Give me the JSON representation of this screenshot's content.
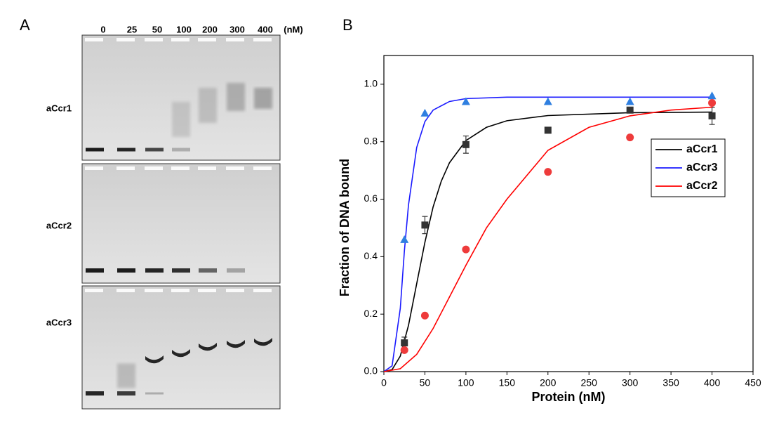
{
  "panel_a": {
    "label": "A",
    "concentrations": [
      "0",
      "25",
      "50",
      "100",
      "200",
      "300",
      "400"
    ],
    "unit": "(nM)",
    "rows": [
      "aCcr1",
      "aCcr2",
      "aCcr3"
    ]
  },
  "panel_b": {
    "label": "B"
  },
  "chart_data": {
    "type": "scatter",
    "x_label": "Protein (nM)",
    "y_label": "Fraction of DNA bound",
    "xlim": [
      0,
      450
    ],
    "ylim": [
      0,
      1.1
    ],
    "xticks": [
      0,
      50,
      100,
      150,
      200,
      250,
      300,
      350,
      400,
      450
    ],
    "yticks": [
      {
        "value": 0,
        "label": "0.0"
      },
      0.2,
      0.4,
      0.6,
      0.8,
      {
        "value": 1,
        "label": "1.0"
      }
    ],
    "grid": false,
    "legend": "right",
    "x": [
      25,
      50,
      100,
      200,
      300,
      400
    ],
    "series": [
      {
        "name": "aCcr1",
        "color": "#333333",
        "marker": "square",
        "values": [
          0.1,
          0.51,
          0.79,
          0.84,
          0.91,
          0.89
        ],
        "errors": [
          0.02,
          0.03,
          0.03,
          0.01,
          0.01,
          0.03
        ],
        "fit": {
          "color": "#000000",
          "x": [
            0,
            10,
            20,
            30,
            40,
            50,
            60,
            70,
            80,
            100,
            125,
            150,
            200,
            300,
            400
          ],
          "values": [
            0,
            0.007,
            0.054,
            0.161,
            0.306,
            0.45,
            0.573,
            0.663,
            0.727,
            0.804,
            0.85,
            0.873,
            0.891,
            0.901,
            0.903
          ]
        }
      },
      {
        "name": "aCcr3",
        "color": "#2f7fe0",
        "marker": "triangle",
        "values": [
          0.46,
          0.9,
          0.94,
          0.94,
          0.94,
          0.96
        ],
        "fit": {
          "color": "#1a1aff",
          "x": [
            0,
            10,
            20,
            25,
            30,
            40,
            50,
            60,
            80,
            100,
            150,
            200,
            300,
            400
          ],
          "values": [
            0,
            0.02,
            0.22,
            0.42,
            0.58,
            0.78,
            0.87,
            0.91,
            0.94,
            0.95,
            0.955,
            0.955,
            0.955,
            0.955
          ]
        }
      },
      {
        "name": "aCcr2",
        "color": "#ee3b3b",
        "marker": "circle",
        "values": [
          0.075,
          0.195,
          0.425,
          0.695,
          0.815,
          0.935
        ],
        "fit": {
          "color": "#ff0000",
          "x": [
            0,
            20,
            40,
            60,
            80,
            100,
            125,
            150,
            200,
            250,
            300,
            350,
            400
          ],
          "values": [
            0,
            0.01,
            0.06,
            0.15,
            0.26,
            0.37,
            0.5,
            0.6,
            0.77,
            0.85,
            0.89,
            0.91,
            0.92
          ]
        }
      }
    ]
  }
}
